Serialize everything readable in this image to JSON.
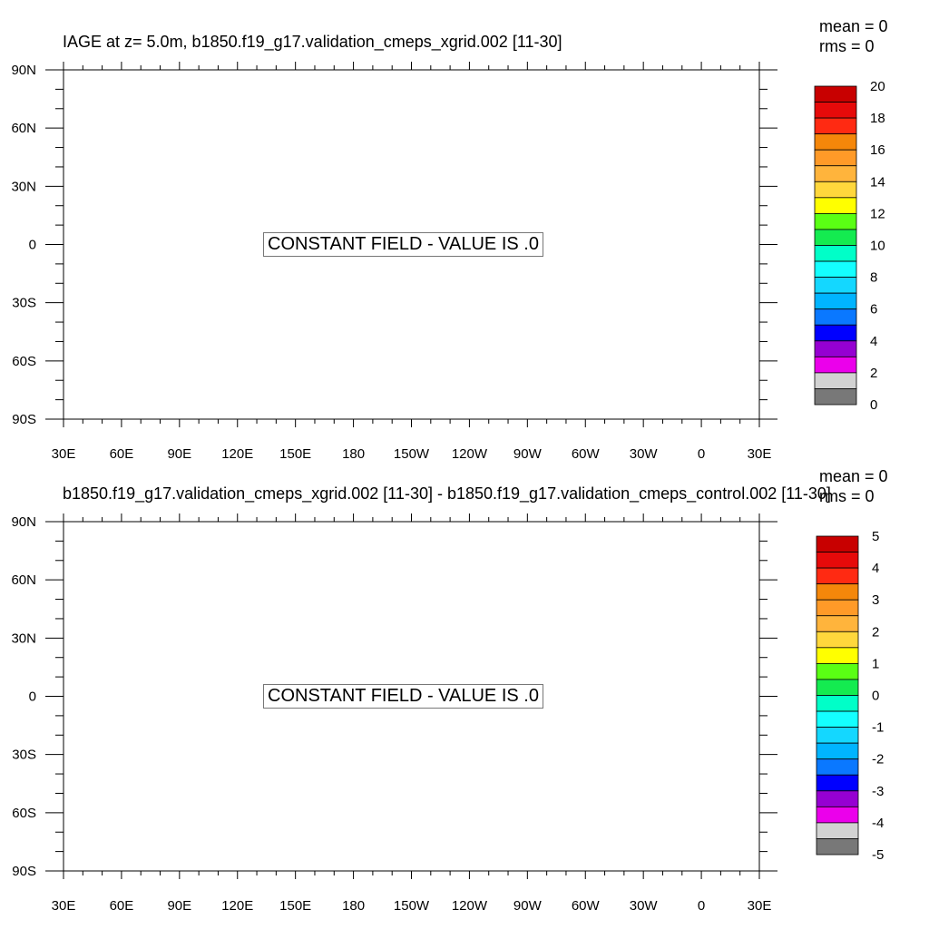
{
  "chart_data": [
    {
      "type": "heatmap",
      "title": "IAGE at z=   5.0m, b1850.f19_g17.validation_cmeps_xgrid.002 [11-30]",
      "stats": {
        "mean": "mean = 0",
        "rms": "rms = 0"
      },
      "x_ticks": [
        "30E",
        "60E",
        "90E",
        "120E",
        "150E",
        "180",
        "150W",
        "120W",
        "90W",
        "60W",
        "30W",
        "0",
        "30E"
      ],
      "y_ticks": [
        "90N",
        "60N",
        "30N",
        "0",
        "30S",
        "60S",
        "90S"
      ],
      "annotation": "CONSTANT FIELD - VALUE IS .0",
      "colorbar": {
        "labels": [
          "20",
          "18",
          "16",
          "14",
          "12",
          "10",
          "8",
          "6",
          "4",
          "2",
          "0"
        ],
        "colors": [
          "#c80000",
          "#e60a0a",
          "#ff2a12",
          "#f5870a",
          "#ff9a28",
          "#ffb43c",
          "#ffd73c",
          "#ffff00",
          "#5aff14",
          "#14eb50",
          "#00ffc8",
          "#14ffff",
          "#14d7ff",
          "#00b4ff",
          "#0a78ff",
          "#0000ff",
          "#9600d2",
          "#eb00eb",
          "#d2d2d2",
          "#787878"
        ]
      }
    },
    {
      "type": "heatmap",
      "title": "b1850.f19_g17.validation_cmeps_xgrid.002 [11-30] - b1850.f19_g17.validation_cmeps_control.002 [11-30]",
      "stats": {
        "mean": "mean = 0",
        "rms": "rms = 0"
      },
      "x_ticks": [
        "30E",
        "60E",
        "90E",
        "120E",
        "150E",
        "180",
        "150W",
        "120W",
        "90W",
        "60W",
        "30W",
        "0",
        "30E"
      ],
      "y_ticks": [
        "90N",
        "60N",
        "30N",
        "0",
        "30S",
        "60S",
        "90S"
      ],
      "annotation": "CONSTANT FIELD - VALUE IS .0",
      "colorbar": {
        "labels": [
          "5",
          "4",
          "3",
          "2",
          "1",
          "0",
          "-1",
          "-2",
          "-3",
          "-4",
          "-5"
        ],
        "colors": [
          "#c80000",
          "#e60a0a",
          "#ff2a12",
          "#f5870a",
          "#ff9a28",
          "#ffb43c",
          "#ffd73c",
          "#ffff00",
          "#5aff14",
          "#14eb50",
          "#00ffc8",
          "#14ffff",
          "#14d7ff",
          "#00b4ff",
          "#0a78ff",
          "#0000ff",
          "#9600d2",
          "#eb00eb",
          "#d2d2d2",
          "#787878"
        ]
      }
    }
  ]
}
